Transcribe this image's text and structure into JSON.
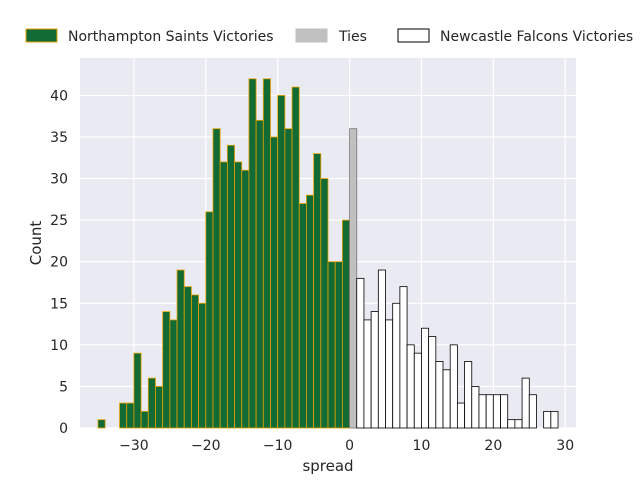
{
  "chart_data": {
    "type": "bar",
    "title": "",
    "xlabel": "spread",
    "ylabel": "Count",
    "xlim": [
      -37.5,
      31.5
    ],
    "ylim": [
      0,
      44.5
    ],
    "xticks": [
      -30,
      -20,
      -10,
      0,
      10,
      20,
      30
    ],
    "xtick_labels": [
      "−30",
      "−20",
      "−10",
      "0",
      "10",
      "20",
      "30"
    ],
    "yticks": [
      0,
      5,
      10,
      15,
      20,
      25,
      30,
      35,
      40
    ],
    "ytick_labels": [
      "0",
      "5",
      "10",
      "15",
      "20",
      "25",
      "30",
      "35",
      "40"
    ],
    "grid": true,
    "legend_position": "top, above plot",
    "series": [
      {
        "name": "Northampton Saints Victories",
        "color": "#126B34",
        "edge_color": "#E8A000",
        "x": [
          -35,
          -34,
          -33,
          -32,
          -31,
          -30,
          -29,
          -28,
          -27,
          -26,
          -25,
          -24,
          -23,
          -22,
          -21,
          -20,
          -19,
          -18,
          -17,
          -16,
          -15,
          -14,
          -13,
          -12,
          -11,
          -10,
          -9,
          -8,
          -7,
          -6,
          -5,
          -4,
          -3,
          -2,
          -1
        ],
        "values": [
          1,
          0,
          0,
          3,
          3,
          9,
          2,
          6,
          5,
          14,
          13,
          19,
          17,
          16,
          15,
          26,
          36,
          32,
          34,
          32,
          31,
          42,
          37,
          42,
          35,
          40,
          36,
          41,
          27,
          28,
          33,
          30,
          20,
          20,
          25
        ]
      },
      {
        "name": "Ties",
        "color": "#C0C0C0",
        "edge_color": "#7A7A7A",
        "x": [
          0
        ],
        "values": [
          36
        ]
      },
      {
        "name": "Newcastle Falcons Victories",
        "color": "#FFFFFF",
        "edge_color": "#000000",
        "x": [
          1,
          2,
          3,
          4,
          5,
          6,
          7,
          8,
          9,
          10,
          11,
          12,
          13,
          14,
          15,
          16,
          17,
          18,
          19,
          20,
          21,
          22,
          23,
          24,
          25,
          26,
          27,
          28
        ],
        "values": [
          18,
          13,
          14,
          19,
          13,
          15,
          17,
          10,
          9,
          12,
          11,
          8,
          7,
          10,
          3,
          8,
          5,
          4,
          4,
          4,
          4,
          1,
          1,
          6,
          4,
          0,
          2,
          2
        ]
      }
    ]
  }
}
